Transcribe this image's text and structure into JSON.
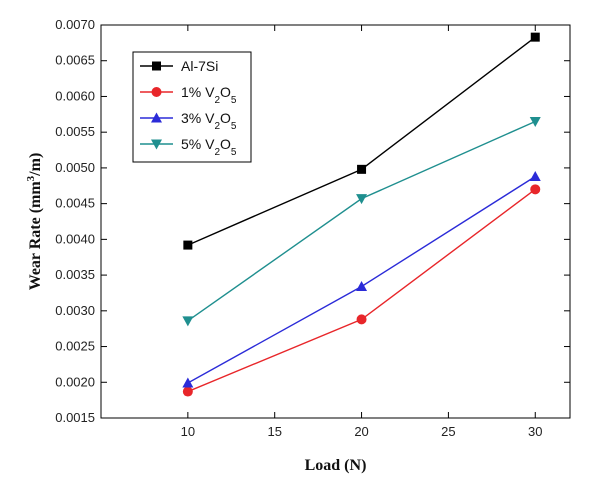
{
  "chart_data": {
    "type": "line",
    "xlabel": "Load (N)",
    "ylabel_parts": [
      "Wear Rate (mm",
      "3",
      "/m)"
    ],
    "x": [
      10,
      20,
      30
    ],
    "xlim": [
      5,
      32
    ],
    "ylim": [
      0.0015,
      0.007
    ],
    "x_ticks": [
      10,
      15,
      20,
      25,
      30
    ],
    "y_ticks": [
      0.0015,
      0.002,
      0.0025,
      0.003,
      0.0035,
      0.004,
      0.0045,
      0.005,
      0.0055,
      0.006,
      0.0065,
      0.007
    ],
    "y_tick_labels": [
      "0.0015",
      "0.0020",
      "0.0025",
      "0.0030",
      "0.0035",
      "0.0040",
      "0.0045",
      "0.0050",
      "0.0055",
      "0.0060",
      "0.0065",
      "0.0070"
    ],
    "grid": false,
    "legend_position": "top-left",
    "series": [
      {
        "name": "Al-7Si",
        "name_parts": [
          "Al-7Si"
        ],
        "values": [
          0.00392,
          0.00498,
          0.00683
        ],
        "color": "#000000",
        "marker": "square"
      },
      {
        "name": "1% V2O5",
        "name_parts": [
          "1% V",
          "2",
          "O",
          "5"
        ],
        "values": [
          0.00187,
          0.00288,
          0.0047
        ],
        "color": "#e8262a",
        "marker": "circle"
      },
      {
        "name": "3% V2O5",
        "name_parts": [
          "3% V",
          "2",
          "O",
          "5"
        ],
        "values": [
          0.00199,
          0.00334,
          0.00488
        ],
        "color": "#2b2bd8",
        "marker": "triangle-up"
      },
      {
        "name": "5% V2O5",
        "name_parts": [
          "5% V",
          "2",
          "O",
          "5"
        ],
        "values": [
          0.00286,
          0.00457,
          0.00565
        ],
        "color": "#1f8f8f",
        "marker": "triangle-down"
      }
    ]
  }
}
